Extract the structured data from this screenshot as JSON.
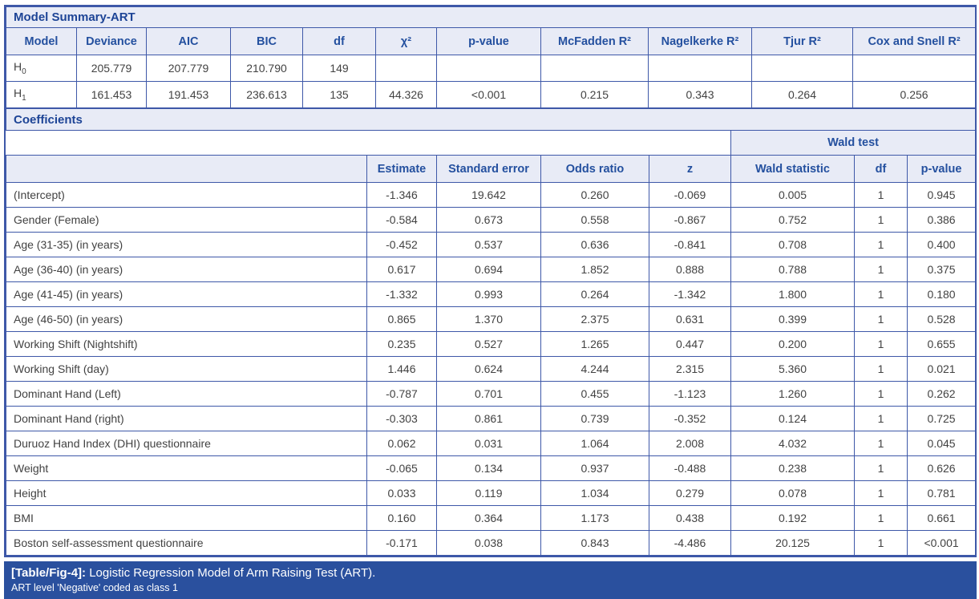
{
  "title": "Model Summary-ART",
  "summary": {
    "columns": [
      "Model",
      "Deviance",
      "AIC",
      "BIC",
      "df",
      "χ²",
      "p-value",
      "McFadden R²",
      "Nagelkerke R²",
      "Tjur R²",
      "Cox and Snell R²"
    ],
    "rows": [
      {
        "model_base": "H",
        "model_sub": "0",
        "values": [
          "205.779",
          "207.779",
          "210.790",
          "149",
          "",
          "",
          "",
          "",
          "",
          ""
        ]
      },
      {
        "model_base": "H",
        "model_sub": "1",
        "values": [
          "161.453",
          "191.453",
          "236.613",
          "135",
          "44.326",
          "<0.001",
          "0.215",
          "0.343",
          "0.264",
          "0.256"
        ]
      }
    ]
  },
  "coefficients": {
    "section_title": "Coefficients",
    "wald_test_label": "Wald test",
    "columns": [
      "",
      "Estimate",
      "Standard error",
      "Odds ratio",
      "z",
      "Wald statistic",
      "df",
      "p-value"
    ],
    "rows": [
      {
        "label": "(Intercept)",
        "values": [
          "-1.346",
          "19.642",
          "0.260",
          "-0.069",
          "0.005",
          "1",
          "0.945"
        ]
      },
      {
        "label": "Gender (Female)",
        "values": [
          "-0.584",
          "0.673",
          "0.558",
          "-0.867",
          "0.752",
          "1",
          "0.386"
        ]
      },
      {
        "label": "Age (31-35) (in years)",
        "values": [
          "-0.452",
          "0.537",
          "0.636",
          "-0.841",
          "0.708",
          "1",
          "0.400"
        ]
      },
      {
        "label": "Age (36-40) (in years)",
        "values": [
          "0.617",
          "0.694",
          "1.852",
          "0.888",
          "0.788",
          "1",
          "0.375"
        ]
      },
      {
        "label": "Age (41-45) (in years)",
        "values": [
          "-1.332",
          "0.993",
          "0.264",
          "-1.342",
          "1.800",
          "1",
          "0.180"
        ]
      },
      {
        "label": "Age (46-50) (in years)",
        "values": [
          "0.865",
          "1.370",
          "2.375",
          "0.631",
          "0.399",
          "1",
          "0.528"
        ]
      },
      {
        "label": "Working Shift (Nightshift)",
        "values": [
          "0.235",
          "0.527",
          "1.265",
          "0.447",
          "0.200",
          "1",
          "0.655"
        ]
      },
      {
        "label": "Working Shift (day)",
        "values": [
          "1.446",
          "0.624",
          "4.244",
          "2.315",
          "5.360",
          "1",
          "0.021"
        ]
      },
      {
        "label": "Dominant Hand (Left)",
        "values": [
          "-0.787",
          "0.701",
          "0.455",
          "-1.123",
          "1.260",
          "1",
          "0.262"
        ]
      },
      {
        "label": "Dominant Hand (right)",
        "values": [
          "-0.303",
          "0.861",
          "0.739",
          "-0.352",
          "0.124",
          "1",
          "0.725"
        ]
      },
      {
        "label": "Duruoz Hand Index (DHI) questionnaire",
        "values": [
          "0.062",
          "0.031",
          "1.064",
          "2.008",
          "4.032",
          "1",
          "0.045"
        ]
      },
      {
        "label": "Weight",
        "values": [
          "-0.065",
          "0.134",
          "0.937",
          "-0.488",
          "0.238",
          "1",
          "0.626"
        ]
      },
      {
        "label": "Height",
        "values": [
          "0.033",
          "0.119",
          "1.034",
          "0.279",
          "0.078",
          "1",
          "0.781"
        ]
      },
      {
        "label": "BMI",
        "values": [
          "0.160",
          "0.364",
          "1.173",
          "0.438",
          "0.192",
          "1",
          "0.661"
        ]
      },
      {
        "label": "Boston self-assessment questionnaire",
        "values": [
          "-0.171",
          "0.038",
          "0.843",
          "-4.486",
          "20.125",
          "1",
          "<0.001"
        ]
      }
    ]
  },
  "footer": {
    "tag": "[Table/Fig-4]:",
    "caption": " Logistic Regression Model of Arm Raising Test (ART).",
    "note": "ART level 'Negative' coded as class 1"
  },
  "colors": {
    "grid_border": "#3e58a8",
    "header_background": "#e8ebf6",
    "header_text": "#24509f",
    "body_text": "#424242",
    "footer_background": "#2a509e",
    "footer_text": "#ffffff"
  }
}
